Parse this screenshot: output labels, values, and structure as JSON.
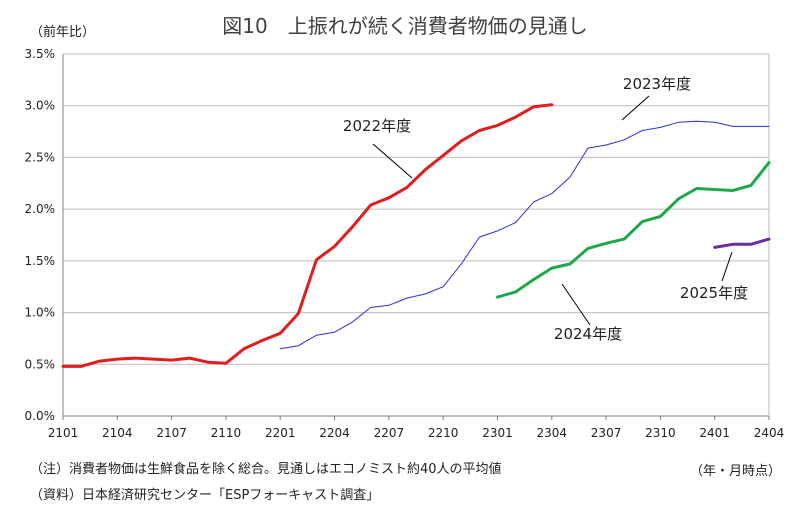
{
  "chart_data": {
    "type": "line",
    "title": "図10　上振れが続く消費者物価の見通し",
    "yunit": "（前年比）",
    "xunit": "（年・月時点）",
    "ylim": [
      0,
      3.5
    ],
    "yticks": [
      "0.0%",
      "0.5%",
      "1.0%",
      "1.5%",
      "2.0%",
      "2.5%",
      "3.0%",
      "3.5%"
    ],
    "xticks": [
      "2101",
      "2104",
      "2107",
      "2110",
      "2201",
      "2204",
      "2207",
      "2210",
      "2301",
      "2304",
      "2307",
      "2310",
      "2401",
      "2404"
    ],
    "legend": "direct labels",
    "grid": "horizontal",
    "series": [
      {
        "name": "2022年度",
        "color": "#E01E1E",
        "x": [
          "2101",
          "2102",
          "2103",
          "2104",
          "2105",
          "2106",
          "2107",
          "2108",
          "2109",
          "2110",
          "2111",
          "2112",
          "2201",
          "2202",
          "2203",
          "2204",
          "2205",
          "2206",
          "2207",
          "2208",
          "2209",
          "2210",
          "2211",
          "2212",
          "2301",
          "2302",
          "2303",
          "2304"
        ],
        "values": [
          0.48,
          0.48,
          0.53,
          0.55,
          0.56,
          0.55,
          0.54,
          0.56,
          0.52,
          0.51,
          0.65,
          0.73,
          0.8,
          0.99,
          1.51,
          1.64,
          1.83,
          2.04,
          2.11,
          2.21,
          2.38,
          2.52,
          2.66,
          2.76,
          2.81,
          2.89,
          2.99,
          3.01
        ]
      },
      {
        "name": "2023年度",
        "color": "#2E2ECC",
        "x": [
          "2201",
          "2202",
          "2203",
          "2204",
          "2205",
          "2206",
          "2207",
          "2208",
          "2209",
          "2210",
          "2211",
          "2212",
          "2301",
          "2302",
          "2303",
          "2304",
          "2305",
          "2306",
          "2307",
          "2308",
          "2309",
          "2310",
          "2311",
          "2312",
          "2401",
          "2402",
          "2403",
          "2404"
        ],
        "values": [
          0.65,
          0.68,
          0.78,
          0.81,
          0.91,
          1.05,
          1.07,
          1.14,
          1.18,
          1.25,
          1.47,
          1.73,
          1.79,
          1.87,
          2.07,
          2.15,
          2.31,
          2.59,
          2.62,
          2.67,
          2.76,
          2.79,
          2.84,
          2.85,
          2.84,
          2.8,
          2.8,
          2.8
        ]
      },
      {
        "name": "2024年度",
        "color": "#1FA84A",
        "x": [
          "2301",
          "2302",
          "2303",
          "2304",
          "2305",
          "2306",
          "2307",
          "2308",
          "2309",
          "2310",
          "2311",
          "2312",
          "2401",
          "2402",
          "2403",
          "2404"
        ],
        "values": [
          1.15,
          1.2,
          1.32,
          1.43,
          1.47,
          1.62,
          1.67,
          1.71,
          1.88,
          1.93,
          2.1,
          2.2,
          2.19,
          2.18,
          2.23,
          2.45
        ]
      },
      {
        "name": "2025年度",
        "color": "#6A2E9E",
        "x": [
          "2401",
          "2402",
          "2403",
          "2404"
        ],
        "values": [
          1.63,
          1.66,
          1.66,
          1.71
        ]
      }
    ]
  },
  "notes": {
    "note1": "（注）消費者物価は生鮮食品を除く総合。見通しはエコノミスト約40人の平均値",
    "note2": "（資料）日本経済研究センター「ESPフォーキャスト調査」"
  }
}
